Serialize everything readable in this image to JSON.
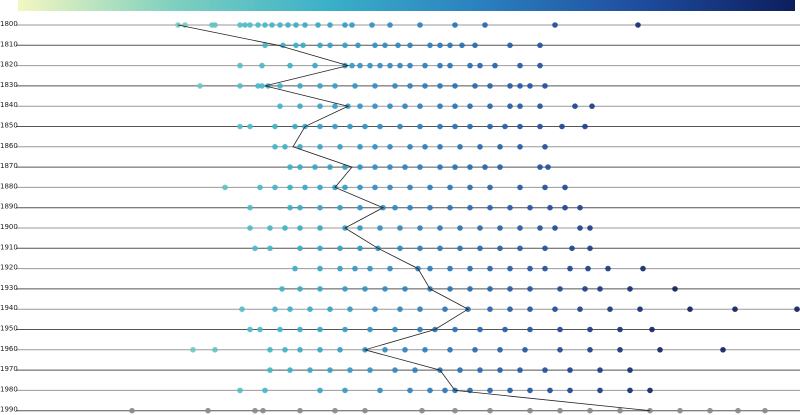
{
  "chart_data": {
    "type": "strip",
    "categories": [
      "1800",
      "1810",
      "1820",
      "1830",
      "1840",
      "1850",
      "1860",
      "1870",
      "1880",
      "1890",
      "1900",
      "1910",
      "1920",
      "1930",
      "1940",
      "1950",
      "1960",
      "1970",
      "1980",
      "1990"
    ],
    "xlim": [
      0,
      800
    ],
    "colorscale": [
      "#f3f7c0",
      "#7fd0c0",
      "#3ab0c8",
      "#2a7fbf",
      "#1f4d9e",
      "#0c1e5c"
    ],
    "colors": [
      null,
      null,
      null,
      null,
      null,
      null,
      null,
      null,
      null,
      null,
      null,
      null,
      null,
      null,
      null,
      null,
      null,
      null,
      null,
      "#888888"
    ],
    "line_color": "#222222",
    "means": [
      178,
      278,
      348,
      265,
      348,
      305,
      293,
      352,
      335,
      383,
      345,
      378,
      418,
      430,
      468,
      435,
      365,
      440,
      455,
      650
    ],
    "values": [
      [
        178,
        185,
        212,
        215,
        240,
        245,
        250,
        258,
        265,
        272,
        280,
        288,
        296,
        305,
        318,
        330,
        345,
        352,
        372,
        390,
        420,
        455,
        485,
        555,
        638
      ],
      [
        265,
        283,
        296,
        303,
        320,
        330,
        345,
        358,
        375,
        385,
        398,
        410,
        430,
        440,
        450,
        462,
        475,
        510,
        540
      ],
      [
        240,
        262,
        290,
        315,
        345,
        352,
        360,
        370,
        380,
        390,
        400,
        410,
        425,
        440,
        450,
        470,
        480,
        495,
        520,
        540
      ],
      [
        200,
        240,
        258,
        262,
        268,
        280,
        300,
        320,
        335,
        355,
        375,
        395,
        410,
        425,
        440,
        455,
        475,
        490,
        510,
        520,
        530,
        545
      ],
      [
        280,
        300,
        320,
        335,
        348,
        360,
        375,
        390,
        405,
        420,
        440,
        455,
        470,
        490,
        510,
        520,
        540,
        575,
        592
      ],
      [
        240,
        250,
        275,
        295,
        305,
        320,
        335,
        350,
        365,
        380,
        400,
        420,
        440,
        455,
        470,
        490,
        505,
        520,
        540,
        562,
        585
      ],
      [
        275,
        285,
        300,
        320,
        340,
        360,
        375,
        390,
        410,
        425,
        440,
        460,
        480,
        500,
        520,
        545
      ],
      [
        290,
        300,
        315,
        330,
        345,
        360,
        375,
        390,
        405,
        420,
        440,
        455,
        470,
        485,
        500,
        540,
        548
      ],
      [
        225,
        260,
        275,
        290,
        305,
        320,
        335,
        345,
        360,
        375,
        390,
        410,
        430,
        450,
        470,
        490,
        520,
        545,
        565
      ],
      [
        250,
        290,
        300,
        320,
        340,
        360,
        383,
        395,
        410,
        430,
        450,
        470,
        490,
        510,
        530,
        550,
        565,
        580
      ],
      [
        250,
        270,
        285,
        300,
        320,
        345,
        360,
        380,
        400,
        420,
        440,
        460,
        480,
        500,
        520,
        540,
        555,
        580,
        590
      ],
      [
        255,
        270,
        300,
        320,
        340,
        360,
        378,
        400,
        420,
        440,
        460,
        480,
        500,
        520,
        545,
        572,
        590
      ],
      [
        295,
        320,
        340,
        355,
        370,
        390,
        418,
        430,
        450,
        470,
        490,
        510,
        530,
        545,
        570,
        588,
        608,
        643
      ],
      [
        282,
        300,
        320,
        345,
        365,
        385,
        405,
        430,
        450,
        470,
        490,
        510,
        530,
        560,
        585,
        600,
        630,
        675
      ],
      [
        242,
        275,
        290,
        310,
        330,
        350,
        375,
        400,
        420,
        445,
        468,
        490,
        510,
        530,
        555,
        580,
        610,
        640,
        690,
        735,
        797
      ],
      [
        250,
        260,
        280,
        300,
        320,
        345,
        370,
        395,
        420,
        435,
        455,
        480,
        505,
        530,
        560,
        590,
        620,
        652
      ],
      [
        193,
        215,
        270,
        285,
        300,
        320,
        340,
        365,
        385,
        405,
        425,
        450,
        475,
        500,
        525,
        560,
        590,
        620,
        660,
        723
      ],
      [
        270,
        290,
        310,
        330,
        350,
        370,
        395,
        415,
        440,
        460,
        480,
        500,
        520,
        545,
        570,
        600,
        630
      ],
      [
        240,
        265,
        320,
        345,
        380,
        410,
        430,
        445,
        455,
        470,
        490,
        510,
        530,
        550,
        570,
        600,
        630,
        650
      ],
      [
        132,
        208,
        255,
        263,
        300,
        335,
        365,
        422,
        455,
        490,
        530,
        560,
        590,
        620,
        650,
        680,
        710,
        738,
        765
      ]
    ]
  }
}
